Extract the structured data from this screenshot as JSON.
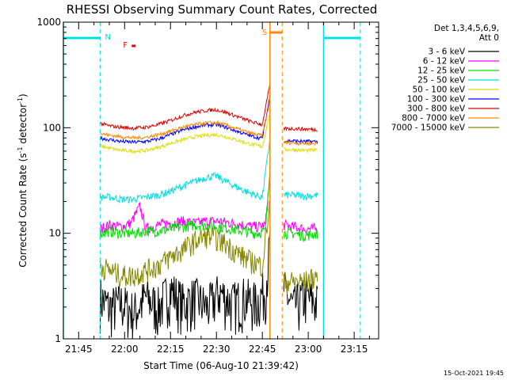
{
  "chart_data": {
    "type": "line",
    "title": "RHESSI Observing Summary Count Rates, Corrected",
    "xlabel": "Start Time (06-Aug-10 21:39:42)",
    "ylabel": "Corrected Count Rate (s⁻¹ detector⁻¹)",
    "ylabel_parts": [
      "Corrected Count Rate (s",
      "-1",
      " detector",
      "-1",
      ")"
    ],
    "y_scale": "log",
    "ylim": [
      1,
      1000
    ],
    "xlim_minutes": [
      -5,
      98
    ],
    "x_ticks": [
      {
        "label": "21:45",
        "t": 0
      },
      {
        "label": "22:00",
        "t": 15
      },
      {
        "label": "22:15",
        "t": 30
      },
      {
        "label": "22:30",
        "t": 45
      },
      {
        "label": "22:45",
        "t": 60
      },
      {
        "label": "23:00",
        "t": 75
      },
      {
        "label": "23:15",
        "t": 90
      }
    ],
    "y_ticks": [
      {
        "label": "1",
        "v": 1
      },
      {
        "label": "10",
        "v": 10
      },
      {
        "label": "100",
        "v": 100
      },
      {
        "label": "1000",
        "v": 1000
      }
    ],
    "legend_header": [
      "Det 1,3,4,5,6,9,",
      "Att 0"
    ],
    "legend_position": "right",
    "timestamp": "15-Oct-2021 19:45",
    "flags": [
      {
        "label": "N",
        "color": "#00e0e0"
      },
      {
        "label": "F",
        "color": "#dd0000"
      },
      {
        "label": "S",
        "color": "#ff8800"
      }
    ],
    "series": [
      {
        "name": "3 - 6 keV",
        "color": "#000000",
        "points": [
          [
            7,
            2.5
          ],
          [
            10,
            2
          ],
          [
            14,
            2.2
          ],
          [
            18,
            1.8
          ],
          [
            22,
            2.5
          ],
          [
            26,
            2
          ],
          [
            30,
            3
          ],
          [
            34,
            2.2
          ],
          [
            38,
            2.5
          ],
          [
            42,
            2
          ],
          [
            46,
            2.8
          ],
          [
            50,
            2.2
          ],
          [
            54,
            2.5
          ],
          [
            58,
            2.2
          ],
          [
            61,
            3
          ],
          [
            62.5,
            8
          ]
        ],
        "points2": [
          [
            67,
            3
          ],
          [
            70,
            2
          ],
          [
            74,
            2.5
          ],
          [
            78,
            2.2
          ]
        ]
      },
      {
        "name": "6 - 12 keV",
        "color": "#ff00ff",
        "points": [
          [
            7,
            11
          ],
          [
            10,
            12
          ],
          [
            14,
            11.5
          ],
          [
            17,
            12.5
          ],
          [
            20,
            18
          ],
          [
            22,
            11
          ],
          [
            26,
            12
          ],
          [
            30,
            12.5
          ],
          [
            34,
            13
          ],
          [
            38,
            12.5
          ],
          [
            42,
            13
          ],
          [
            46,
            13
          ],
          [
            50,
            12.5
          ],
          [
            54,
            12
          ],
          [
            58,
            11.5
          ],
          [
            61,
            12
          ],
          [
            62.5,
            35
          ]
        ],
        "points2": [
          [
            67,
            12
          ],
          [
            70,
            11.5
          ],
          [
            74,
            11
          ],
          [
            78,
            11
          ]
        ]
      },
      {
        "name": "12 - 25 keV",
        "color": "#00dd00",
        "points": [
          [
            7,
            10
          ],
          [
            10,
            10.5
          ],
          [
            14,
            10
          ],
          [
            18,
            10
          ],
          [
            22,
            10.5
          ],
          [
            26,
            10.5
          ],
          [
            30,
            11
          ],
          [
            34,
            11.5
          ],
          [
            38,
            12
          ],
          [
            42,
            12
          ],
          [
            46,
            11.5
          ],
          [
            50,
            11
          ],
          [
            54,
            10.5
          ],
          [
            58,
            10
          ],
          [
            61,
            10.5
          ],
          [
            62.5,
            45
          ]
        ],
        "points2": [
          [
            67,
            10
          ],
          [
            70,
            10
          ],
          [
            74,
            9.5
          ],
          [
            78,
            10
          ]
        ]
      },
      {
        "name": "25 - 50 keV",
        "color": "#00e0e0",
        "points": [
          [
            7,
            22
          ],
          [
            10,
            22
          ],
          [
            14,
            21
          ],
          [
            18,
            21
          ],
          [
            22,
            22
          ],
          [
            26,
            23
          ],
          [
            30,
            25
          ],
          [
            34,
            28
          ],
          [
            38,
            31
          ],
          [
            42,
            34
          ],
          [
            45,
            35
          ],
          [
            48,
            31
          ],
          [
            52,
            27
          ],
          [
            56,
            24
          ],
          [
            60,
            22
          ],
          [
            62.5,
            80
          ]
        ],
        "points2": [
          [
            67,
            23
          ],
          [
            70,
            23
          ],
          [
            74,
            22.5
          ],
          [
            78,
            23
          ]
        ]
      },
      {
        "name": "50 - 100 keV",
        "color": "#dddd00",
        "points": [
          [
            7,
            67
          ],
          [
            10,
            64
          ],
          [
            14,
            61
          ],
          [
            18,
            60
          ],
          [
            22,
            61
          ],
          [
            26,
            65
          ],
          [
            30,
            71
          ],
          [
            34,
            77
          ],
          [
            38,
            82
          ],
          [
            42,
            85
          ],
          [
            45,
            86
          ],
          [
            48,
            82
          ],
          [
            52,
            76
          ],
          [
            56,
            70
          ],
          [
            60,
            66
          ],
          [
            62.5,
            140
          ]
        ],
        "points2": [
          [
            67,
            62
          ],
          [
            70,
            62
          ],
          [
            74,
            61
          ],
          [
            78,
            61
          ]
        ]
      },
      {
        "name": "100 - 300 keV",
        "color": "#0000ff",
        "points": [
          [
            7,
            80
          ],
          [
            10,
            77
          ],
          [
            14,
            74
          ],
          [
            18,
            73
          ],
          [
            22,
            74
          ],
          [
            26,
            78
          ],
          [
            30,
            86
          ],
          [
            34,
            95
          ],
          [
            38,
            102
          ],
          [
            42,
            106
          ],
          [
            45,
            107
          ],
          [
            48,
            101
          ],
          [
            52,
            92
          ],
          [
            56,
            84
          ],
          [
            60,
            79
          ],
          [
            62.5,
            200
          ]
        ],
        "points2": [
          [
            67,
            75
          ],
          [
            70,
            75
          ],
          [
            74,
            74
          ],
          [
            78,
            74
          ]
        ]
      },
      {
        "name": "300 - 800 keV",
        "color": "#dd0000",
        "points": [
          [
            7,
            110
          ],
          [
            10,
            104
          ],
          [
            14,
            101
          ],
          [
            18,
            99
          ],
          [
            22,
            101
          ],
          [
            26,
            107
          ],
          [
            30,
            117
          ],
          [
            34,
            130
          ],
          [
            38,
            140
          ],
          [
            42,
            146
          ],
          [
            45,
            148
          ],
          [
            48,
            140
          ],
          [
            52,
            127
          ],
          [
            56,
            115
          ],
          [
            60,
            107
          ],
          [
            62.5,
            260
          ]
        ],
        "points2": [
          [
            67,
            98
          ],
          [
            70,
            98
          ],
          [
            74,
            97
          ],
          [
            78,
            96
          ]
        ]
      },
      {
        "name": "800 - 7000 keV",
        "color": "#ff8800",
        "points": [
          [
            7,
            88
          ],
          [
            10,
            85
          ],
          [
            14,
            82
          ],
          [
            18,
            80
          ],
          [
            22,
            81
          ],
          [
            26,
            86
          ],
          [
            30,
            93
          ],
          [
            34,
            101
          ],
          [
            38,
            107
          ],
          [
            42,
            111
          ],
          [
            45,
            112
          ],
          [
            48,
            106
          ],
          [
            52,
            97
          ],
          [
            56,
            89
          ],
          [
            60,
            84
          ],
          [
            62.5,
            180
          ]
        ],
        "points2": [
          [
            67,
            72
          ],
          [
            70,
            72
          ],
          [
            74,
            71
          ],
          [
            78,
            71
          ]
        ]
      },
      {
        "name": "7000 - 15000 keV",
        "color": "#888800",
        "points": [
          [
            7,
            5
          ],
          [
            10,
            4.5
          ],
          [
            14,
            4
          ],
          [
            18,
            4
          ],
          [
            22,
            4.5
          ],
          [
            26,
            5
          ],
          [
            30,
            6
          ],
          [
            34,
            7
          ],
          [
            38,
            8.5
          ],
          [
            42,
            9.5
          ],
          [
            45,
            9
          ],
          [
            48,
            8
          ],
          [
            52,
            6.5
          ],
          [
            56,
            5.5
          ],
          [
            60,
            5
          ],
          [
            62.5,
            20
          ]
        ],
        "points2": [
          [
            67,
            3.5
          ],
          [
            70,
            3.5
          ],
          [
            74,
            3.5
          ],
          [
            78,
            4
          ]
        ]
      }
    ]
  }
}
